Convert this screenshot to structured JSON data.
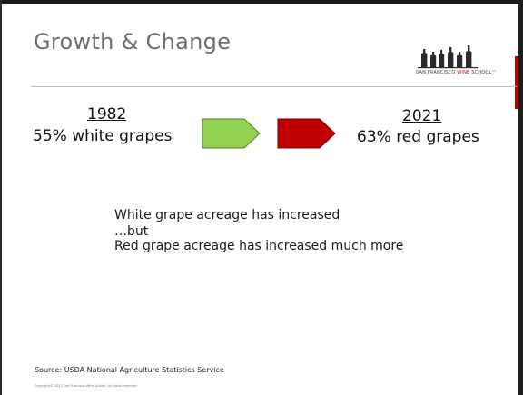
{
  "slide": {
    "title": "Growth & Change",
    "logo": {
      "text_prefix": "SAN FRANCISCO ",
      "text_highlight": "WINE",
      "text_suffix": " SCHOOL™",
      "accent_color": "#c00000"
    },
    "left": {
      "year": "1982",
      "stat": "55% white grapes",
      "arrow_color": "#92d050"
    },
    "right": {
      "year": "2021",
      "stat": "63% red grapes",
      "arrow_color": "#c00000"
    },
    "body_lines": [
      "White grape acreage has increased",
      "…but",
      "Red grape acreage has increased much more"
    ],
    "source": "Source: USDA National Agriculture Statistics Service",
    "copyright": "Copyright© 2023 San Francisco Wine School. All rights reserved"
  }
}
